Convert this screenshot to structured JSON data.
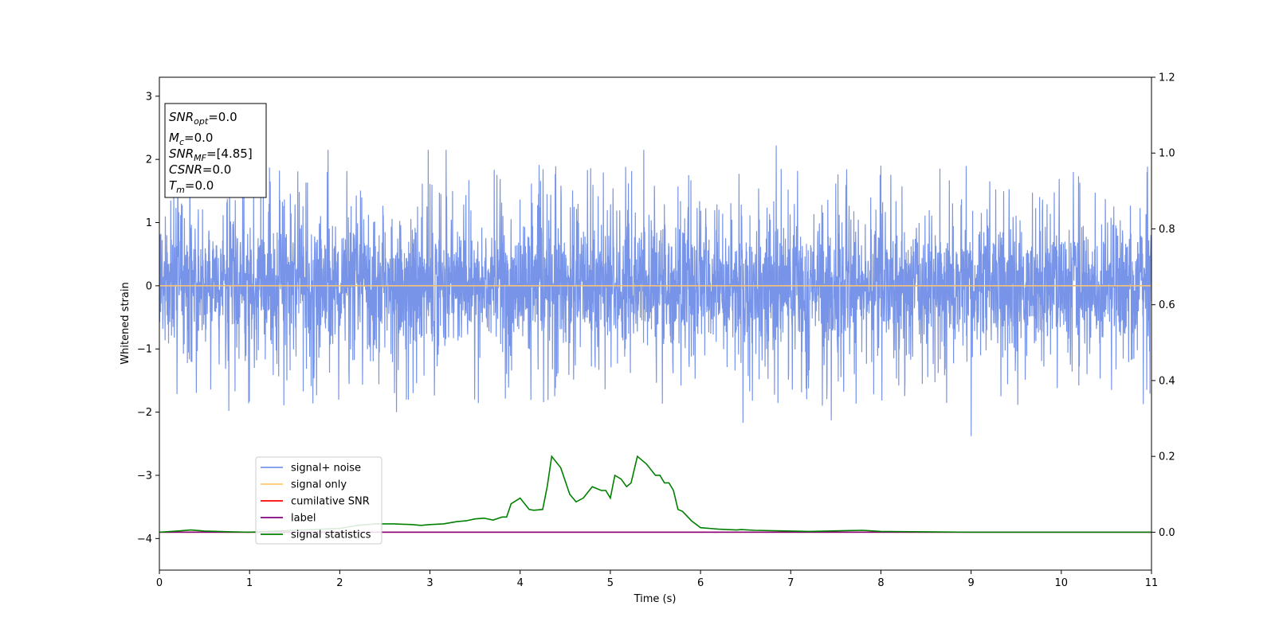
{
  "chart_data": {
    "type": "line",
    "xlabel": "Time (s)",
    "ylabel": "Whitened strain",
    "xlim": [
      0,
      11
    ],
    "ylim_left": [
      -4.5,
      3.3
    ],
    "ylim_right": [
      -0.1,
      1.2
    ],
    "x_ticks": [
      0,
      1,
      2,
      3,
      4,
      5,
      6,
      7,
      8,
      9,
      10,
      11
    ],
    "y_ticks_left": [
      -4,
      -3,
      -2,
      -1,
      0,
      1,
      2,
      3
    ],
    "y_ticks_right": [
      0.0,
      0.2,
      0.4,
      0.6,
      0.8,
      1.0,
      1.2
    ],
    "grid": false,
    "legend_position": "lower-left",
    "annotation_box": {
      "position": "top-left",
      "lines": [
        {
          "base": "SNR",
          "sub": "opt",
          "value": "=0.0"
        },
        {
          "base": "M",
          "sub": "c",
          "value": "=0.0"
        },
        {
          "base": "SNR",
          "sub": "MF",
          "value": "=[4.85]"
        },
        {
          "base": "CSNR",
          "sub": "",
          "value": "=0.0"
        },
        {
          "base": "T",
          "sub": "m",
          "value": "=0.0"
        }
      ]
    },
    "series": [
      {
        "name": "signal+ noise",
        "axis": "left",
        "color": "#7794e8",
        "kind": "noise",
        "envelope": {
          "typical": 1.05,
          "peak_max": 2.2,
          "peak_min": -2.4
        },
        "notable_peaks": [
          {
            "x": 1.87,
            "y": 2.15
          },
          {
            "x": 2.98,
            "y": 2.15
          },
          {
            "x": 3.18,
            "y": 2.15
          },
          {
            "x": 5.37,
            "y": 2.15
          },
          {
            "x": 6.84,
            "y": 2.22
          },
          {
            "x": 8.0,
            "y": 1.9
          },
          {
            "x": 9.0,
            "y": 2.0
          },
          {
            "x": 10.95,
            "y": 1.8
          }
        ],
        "notable_troughs": [
          {
            "x": 0.77,
            "y": -1.98
          },
          {
            "x": 2.63,
            "y": -2.0
          },
          {
            "x": 6.47,
            "y": -2.17
          },
          {
            "x": 7.45,
            "y": -2.13
          },
          {
            "x": 9.0,
            "y": -2.38
          }
        ]
      },
      {
        "name": "signal only",
        "axis": "left",
        "color": "#ffc66e",
        "x": [
          0,
          11
        ],
        "y": [
          0,
          0
        ]
      },
      {
        "name": "cumilative SNR",
        "axis": "right",
        "color": "#ff0000",
        "x": [
          0,
          11
        ],
        "y": [
          0,
          0
        ]
      },
      {
        "name": "label",
        "axis": "right",
        "color": "#800080",
        "x": [
          0,
          11
        ],
        "y": [
          0,
          0
        ]
      },
      {
        "name": "signal statistics",
        "axis": "right",
        "color": "#008000",
        "x": [
          0,
          0.2,
          0.35,
          0.5,
          0.8,
          1.0,
          1.3,
          1.5,
          1.8,
          2.0,
          2.2,
          2.4,
          2.6,
          2.8,
          2.9,
          3.0,
          3.15,
          3.3,
          3.4,
          3.5,
          3.6,
          3.7,
          3.8,
          3.85,
          3.9,
          4.0,
          4.1,
          4.15,
          4.25,
          4.3,
          4.35,
          4.45,
          4.55,
          4.62,
          4.7,
          4.8,
          4.9,
          4.95,
          5.0,
          5.05,
          5.12,
          5.18,
          5.23,
          5.3,
          5.4,
          5.5,
          5.55,
          5.6,
          5.65,
          5.7,
          5.75,
          5.8,
          5.9,
          6.0,
          6.2,
          6.4,
          6.45,
          6.6,
          7.0,
          7.2,
          7.6,
          7.8,
          8.0,
          8.5,
          9.0,
          10.0,
          11.0
        ],
        "y": [
          0.0,
          0.003,
          0.006,
          0.003,
          0.001,
          0.0,
          0.003,
          0.005,
          0.008,
          0.01,
          0.018,
          0.022,
          0.022,
          0.02,
          0.018,
          0.02,
          0.022,
          0.028,
          0.03,
          0.035,
          0.037,
          0.032,
          0.04,
          0.04,
          0.075,
          0.09,
          0.06,
          0.058,
          0.06,
          0.12,
          0.2,
          0.17,
          0.1,
          0.08,
          0.09,
          0.12,
          0.11,
          0.11,
          0.09,
          0.15,
          0.14,
          0.12,
          0.13,
          0.2,
          0.18,
          0.15,
          0.15,
          0.13,
          0.13,
          0.11,
          0.06,
          0.055,
          0.03,
          0.012,
          0.008,
          0.006,
          0.007,
          0.005,
          0.003,
          0.002,
          0.004,
          0.005,
          0.002,
          0.001,
          0.0,
          0.0,
          0.0
        ]
      }
    ]
  }
}
